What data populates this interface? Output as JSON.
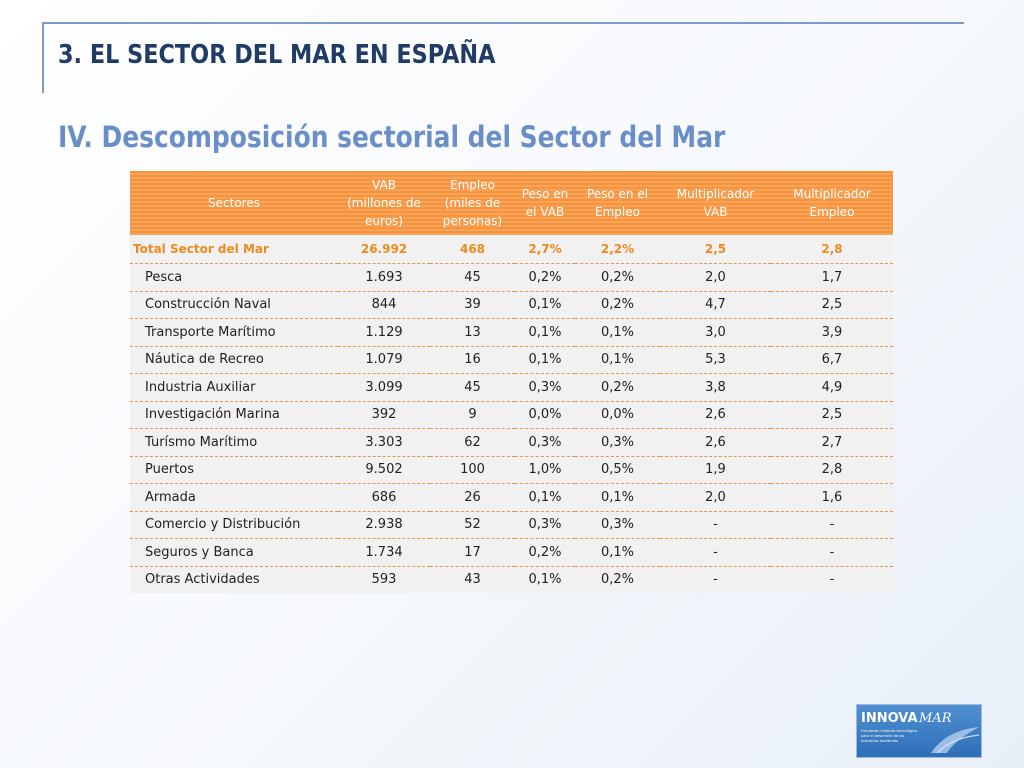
{
  "title": "3. EL SECTOR DEL MAR EN ESPAÑA",
  "subtitle": "IV. Descomposición sectorial del Sector del Mar",
  "table": {
    "headers": [
      [
        "Sectores"
      ],
      [
        "VAB",
        "(millones de",
        "euros)"
      ],
      [
        "Empleo",
        "(miles de",
        "personas)"
      ],
      [
        "Peso en",
        "el VAB"
      ],
      [
        "Peso en el",
        "Empleo"
      ],
      [
        "Multiplicador",
        "VAB"
      ],
      [
        "Multiplicador",
        "Empleo"
      ]
    ],
    "total": [
      "Total Sector del Mar",
      "26.992",
      "468",
      "2,7%",
      "2,2%",
      "2,5",
      "2,8"
    ],
    "rows": [
      [
        "Pesca",
        "1.693",
        "45",
        "0,2%",
        "0,2%",
        "2,0",
        "1,7"
      ],
      [
        "Construcción Naval",
        "844",
        "39",
        "0,1%",
        "0,2%",
        "4,7",
        "2,5"
      ],
      [
        "Transporte Marítimo",
        "1.129",
        "13",
        "0,1%",
        "0,1%",
        "3,0",
        "3,9"
      ],
      [
        "Náutica de Recreo",
        "1.079",
        "16",
        "0,1%",
        "0,1%",
        "5,3",
        "6,7"
      ],
      [
        "Industria Auxiliar",
        "3.099",
        "45",
        "0,3%",
        "0,2%",
        "3,8",
        "4,9"
      ],
      [
        "Investigación Marina",
        "392",
        "9",
        "0,0%",
        "0,0%",
        "2,6",
        "2,5"
      ],
      [
        "Turísmo Marítimo",
        "3.303",
        "62",
        "0,3%",
        "0,3%",
        "2,6",
        "2,7"
      ],
      [
        "Puertos",
        "9.502",
        "100",
        "1,0%",
        "0,5%",
        "1,9",
        "2,8"
      ],
      [
        "Armada",
        "686",
        "26",
        "0,1%",
        "0,1%",
        "2,0",
        "1,6"
      ],
      [
        "Comercio y Distribución",
        "2.938",
        "52",
        "0,3%",
        "0,3%",
        "-",
        "-"
      ],
      [
        "Seguros y Banca",
        "1.734",
        "17",
        "0,2%",
        "0,1%",
        "-",
        "-"
      ],
      [
        "Otras Actividades",
        "593",
        "43",
        "0,1%",
        "0,2%",
        "-",
        "-"
      ]
    ]
  },
  "logo": {
    "brand_a": "INNOVA",
    "brand_b": "MAR",
    "tagline": [
      "Fundación Instituto tecnológico",
      "para el desarrollo de las",
      "industrias marítimas"
    ]
  },
  "colors": {
    "title": "#1f3b66",
    "subtitle": "#6a8fc8",
    "header_orange": "#f7943a",
    "total_text": "#ee8a1e",
    "rule": "#7a9cc6"
  }
}
